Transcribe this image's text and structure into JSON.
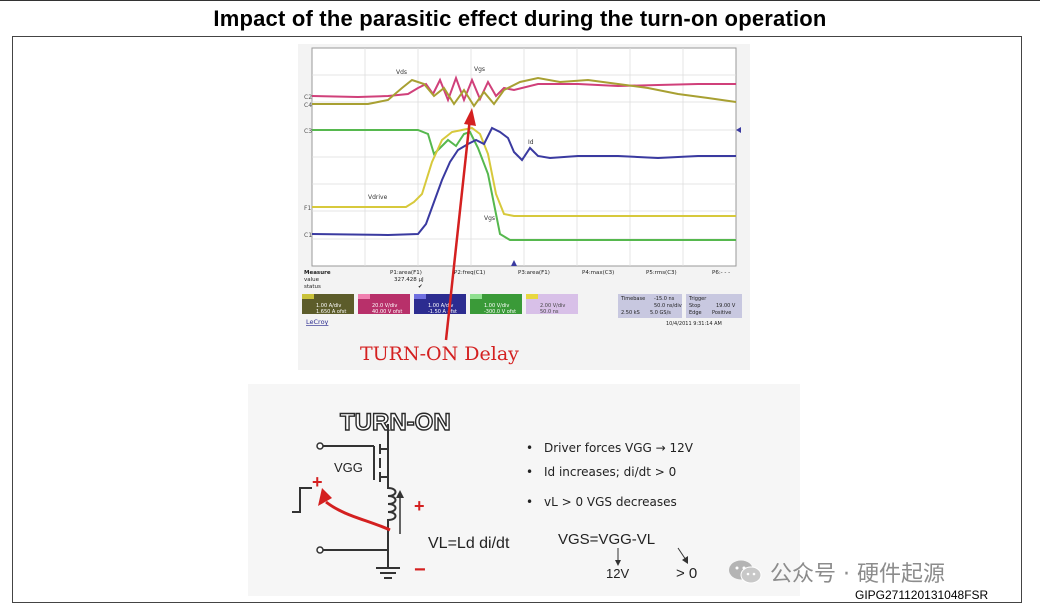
{
  "title": "Impact of the parasitic effect during the turn-on operation",
  "colors": {
    "yellow": "#d7c93c",
    "olive": "#a8a032",
    "magenta": "#d0407a",
    "green": "#56b84e",
    "blue": "#3a3aa0",
    "red": "#d42020"
  },
  "oscilloscope": {
    "trace_labels": {
      "vds": "Vds",
      "vgs": "Vgs",
      "id": "Id",
      "vdrive": "Vdrive",
      "vgs_low": "Vgs"
    },
    "measure": {
      "header": "Measure",
      "row_value": "value",
      "row_status": "status",
      "params": [
        "P1:area(F1)",
        "P2:freq(C1)",
        "P3:area(F1)",
        "P4:max(C3)",
        "P5:rms(C3)",
        "P6:- - -"
      ],
      "p1_value": "327.428 µJ",
      "p1_status": "✔"
    },
    "channels": [
      {
        "name": "C1",
        "line1": "1.00 A/div",
        "line2": "1.650 A ofst"
      },
      {
        "name": "C2",
        "line1": "20.0 V/div",
        "line2": "40.00 V ofst"
      },
      {
        "name": "C3",
        "line1": "1.00 A/div",
        "line2": "-1.50 A ofst"
      },
      {
        "name": "C4",
        "line1": "1.00 V/div",
        "line2": "-300.0 V ofst"
      },
      {
        "name": "F1",
        "line1": "2.00 V/div",
        "line2": "50.0 ns"
      }
    ],
    "timebase": {
      "label": "Timebase",
      "value": "-15.0 ns",
      "div": "50.0 ns/div",
      "samples": "2.50 kS",
      "rate": "5.0 GS/s"
    },
    "trigger": {
      "label": "Trigger",
      "mode": "Stop",
      "level": "19.00 V",
      "type": "Edge",
      "slope": "Positive"
    },
    "brand": "LeCroy",
    "timestamp": "10/4/2011 9:31:14 AM"
  },
  "annotation": "TURN-ON Delay",
  "circuit": {
    "heading": "TURN-ON",
    "vgg_label": "VGG",
    "plus_sign": "+",
    "plus_right": "+",
    "minus_right": "−",
    "vl_equation": "VL=Ld di/dt"
  },
  "bullets": [
    "Driver forces VGG → 12V",
    "Id increases;   di/dt > 0",
    "vL > 0   VGS  decreases"
  ],
  "equation": {
    "main": "VGS=VGG-VL",
    "left": "12V",
    "right": "> 0"
  },
  "watermark": "公众号 · 硬件起源",
  "doc_id": "GIPG271120131048FSR"
}
